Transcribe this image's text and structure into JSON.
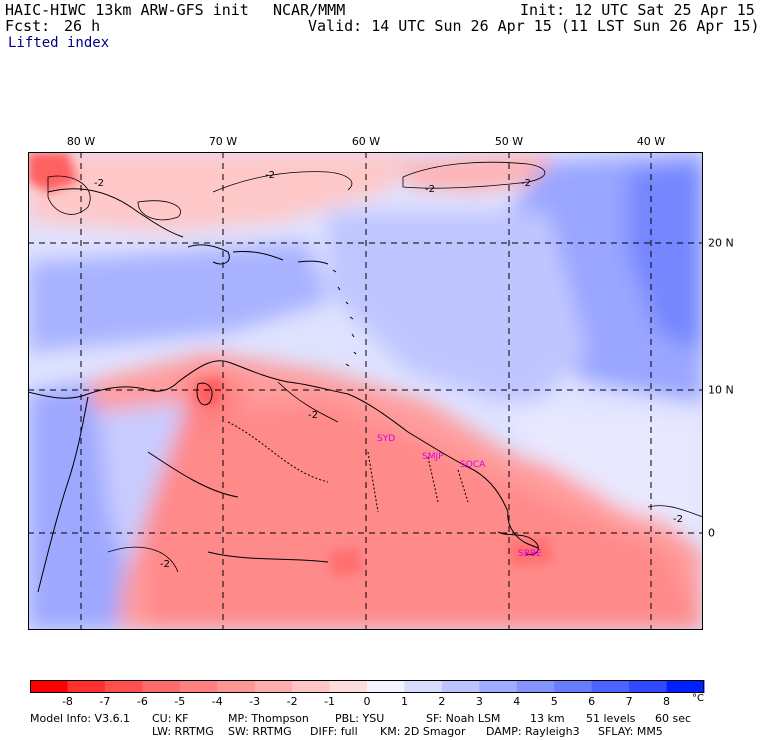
{
  "header": {
    "model_title": "HAIC-HIWC 13km ARW-GFS init",
    "org": "NCAR/MMM",
    "init": "Init: 12 UTC Sat 25 Apr 15",
    "fcst_label": "Fcst:",
    "fcst_value": "26 h",
    "valid": "Valid: 14 UTC Sun 26 Apr 15 (11 LST Sun 26 Apr 15)",
    "field": "Lifted index"
  },
  "map": {
    "lon_labels": [
      "80 W",
      "70 W",
      "60 W",
      "50 W",
      "40 W"
    ],
    "lat_labels": [
      "20 N",
      "10 N",
      "0"
    ],
    "contour_labels": [
      "-2",
      "-2",
      "-2",
      "-2",
      "-2",
      "-2",
      "-2"
    ],
    "stations": [
      "SYD",
      "SMJP",
      "SOCA",
      "SBBE"
    ]
  },
  "colorbar": {
    "labels": [
      "-8",
      "-7",
      "-6",
      "-5",
      "-4",
      "-3",
      "-2",
      "-1",
      "0",
      "1",
      "2",
      "3",
      "4",
      "5",
      "6",
      "7",
      "8"
    ],
    "unit": "°C",
    "colors": [
      "#ff0000",
      "#ff3030",
      "#ff5050",
      "#ff6a6a",
      "#ff8080",
      "#ff9696",
      "#ffacac",
      "#ffc4c4",
      "#ffdcdc",
      "#f4f4ff",
      "#d8dcff",
      "#bcc4ff",
      "#a0acff",
      "#8494ff",
      "#687cff",
      "#4c64ff",
      "#3048ff",
      "#0020ff"
    ]
  },
  "model_info": {
    "line1": [
      "Model Info: V3.6.1",
      "CU: KF",
      "MP: Thompson",
      "PBL: YSU",
      "SF: Noah LSM",
      "13 km",
      "51 levels",
      "60 sec"
    ],
    "line2": [
      "LW: RRTMG",
      "SW: RRTMG",
      "DIFF: full",
      "KM: 2D Smagor",
      "DAMP: Rayleigh3",
      "SFLAY: MM5"
    ]
  }
}
